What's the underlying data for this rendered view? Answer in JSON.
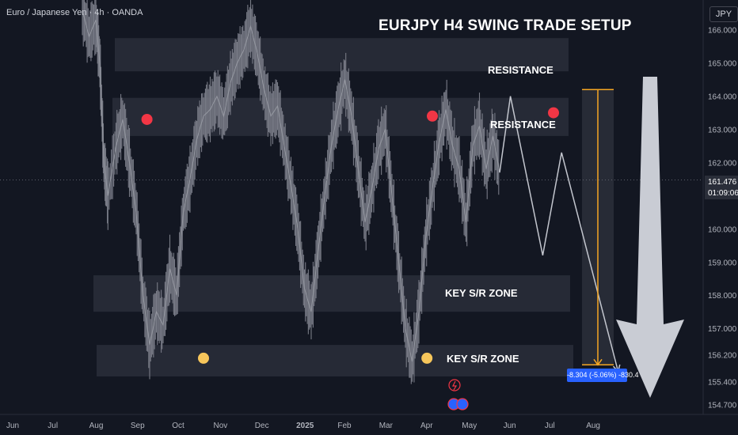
{
  "header": {
    "symbol_line": "Euro / Japanese Yen · 4h · OANDA",
    "currency": "JPY"
  },
  "title": "EURJPY H4 SWING TRADE SETUP",
  "current_price": {
    "value": "161.476",
    "countdown": "01:09:06"
  },
  "zones": [
    {
      "name": "resistance-upper",
      "label": "RESISTANCE",
      "low": 164.75,
      "high": 165.75
    },
    {
      "name": "resistance-lower",
      "label": "RESISTANCE",
      "low": 162.8,
      "high": 163.95
    },
    {
      "name": "key-sr-upper",
      "label": "KEY S/R ZONE",
      "low": 157.5,
      "high": 158.6
    },
    {
      "name": "key-sr-lower",
      "label": "KEY S/R ZONE",
      "low": 155.55,
      "high": 156.5
    }
  ],
  "measure": {
    "label": "-8.304 (-5.06%) -830.4",
    "from": 164.2,
    "to": 155.9
  },
  "colors": {
    "background": "#131722",
    "candles": "#787b86",
    "zone": "#2a2e39",
    "resistance_marker": "#f23645",
    "support_marker": "#f7c65b",
    "projection": "#c3c6ce",
    "measure_line": "#f5a623",
    "measure_tag": "#2962ff",
    "big_arrow": "#c9ccd4"
  },
  "chart_data": {
    "type": "line",
    "title": "EURJPY H4 SWING TRADE SETUP",
    "xlabel": "",
    "ylabel": "",
    "x_ticks": [
      "Jun",
      "Jul",
      "Aug",
      "Sep",
      "Oct",
      "Nov",
      "Dec",
      "2025",
      "Feb",
      "Mar",
      "Apr",
      "May",
      "Jun",
      "Jul",
      "Aug"
    ],
    "y_ticks": [
      "166.000",
      "165.000",
      "164.000",
      "163.000",
      "162.000",
      "161.000",
      "160.000",
      "159.000",
      "158.000",
      "157.000",
      "156.200",
      "155.400",
      "154.700"
    ],
    "ylim": [
      154.5,
      166.9
    ],
    "grid": false,
    "series": [
      {
        "values": [
          [
            0.0,
            166.6
          ],
          [
            0.05,
            165.8
          ],
          [
            0.1,
            166.3
          ],
          [
            0.13,
            165.0
          ],
          [
            0.16,
            162.0
          ],
          [
            0.19,
            161.0
          ],
          [
            0.25,
            162.5
          ],
          [
            0.3,
            163.3
          ],
          [
            0.35,
            162.0
          ],
          [
            0.4,
            160.5
          ],
          [
            0.45,
            158.0
          ],
          [
            0.5,
            156.5
          ],
          [
            0.55,
            157.5
          ],
          [
            0.6,
            157.1
          ],
          [
            0.65,
            158.8
          ],
          [
            0.7,
            158.0
          ],
          [
            0.75,
            160.5
          ],
          [
            0.8,
            161.5
          ],
          [
            0.85,
            162.7
          ],
          [
            0.9,
            163.4
          ],
          [
            0.95,
            163.6
          ],
          [
            1.0,
            164.0
          ],
          [
            1.05,
            163.4
          ],
          [
            1.1,
            164.4
          ],
          [
            1.15,
            165.0
          ],
          [
            1.2,
            165.4
          ],
          [
            1.25,
            166.1
          ],
          [
            1.3,
            165.3
          ],
          [
            1.35,
            164.2
          ],
          [
            1.4,
            163.4
          ],
          [
            1.45,
            163.7
          ],
          [
            1.5,
            162.5
          ],
          [
            1.55,
            161.3
          ],
          [
            1.6,
            160.0
          ],
          [
            1.65,
            158.2
          ],
          [
            1.7,
            157.5
          ],
          [
            1.75,
            159.3
          ],
          [
            1.8,
            161.0
          ],
          [
            1.85,
            162.5
          ],
          [
            1.9,
            163.6
          ],
          [
            1.95,
            164.5
          ],
          [
            2.0,
            163.4
          ],
          [
            2.05,
            161.8
          ],
          [
            2.1,
            160.2
          ],
          [
            2.15,
            161.2
          ],
          [
            2.2,
            162.4
          ],
          [
            2.25,
            163.0
          ],
          [
            2.3,
            161.0
          ],
          [
            2.35,
            159.0
          ],
          [
            2.4,
            157.0
          ],
          [
            2.45,
            156.0
          ],
          [
            2.5,
            157.5
          ],
          [
            2.55,
            159.7
          ],
          [
            2.6,
            161.2
          ],
          [
            2.65,
            162.6
          ],
          [
            2.7,
            163.6
          ],
          [
            2.75,
            162.5
          ],
          [
            2.8,
            161.8
          ],
          [
            2.85,
            160.2
          ],
          [
            2.9,
            162.5
          ],
          [
            2.95,
            163.1
          ],
          [
            3.0,
            161.8
          ],
          [
            3.05,
            162.8
          ],
          [
            3.1,
            161.7
          ]
        ]
      }
    ],
    "projection": [
      [
        3.1,
        161.7
      ],
      [
        3.18,
        164.0
      ],
      [
        3.42,
        159.2
      ],
      [
        3.56,
        162.3
      ],
      [
        3.98,
        155.7
      ]
    ],
    "markers": {
      "resistance": [
        [
          0.48,
          163.3
        ],
        [
          2.6,
          163.4
        ],
        [
          3.5,
          163.5
        ]
      ],
      "support": [
        [
          0.9,
          156.1
        ],
        [
          2.56,
          156.1
        ],
        [
          4.23,
          156.1
        ]
      ]
    }
  }
}
